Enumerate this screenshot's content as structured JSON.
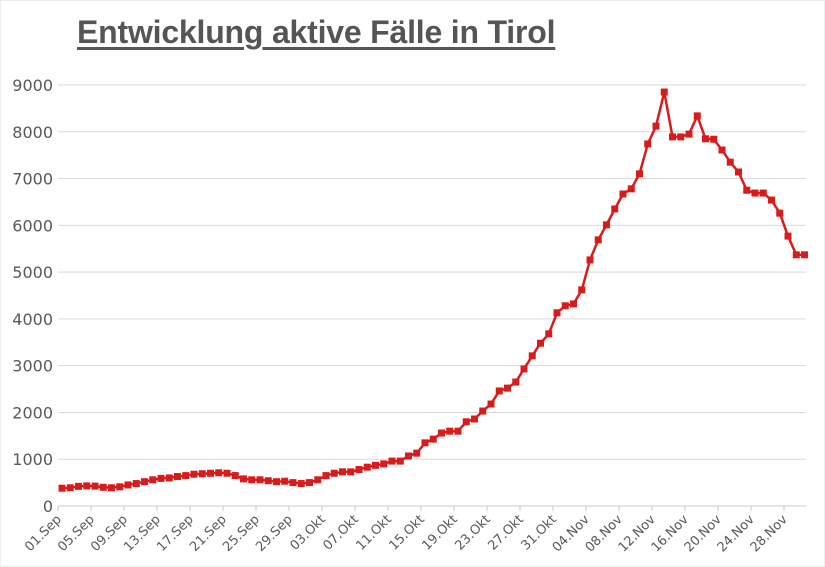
{
  "chart_data": {
    "type": "line",
    "title": "Entwicklung aktive Fälle in Tirol",
    "xlabel": "",
    "ylabel": "",
    "ylim": [
      0,
      9000
    ],
    "yticks": [
      0,
      1000,
      2000,
      3000,
      4000,
      5000,
      6000,
      7000,
      8000,
      9000
    ],
    "grid": true,
    "legend": null,
    "line_color": "#d81c1c",
    "marker": "square",
    "x_tick_labels": [
      "01.Sep",
      "05.Sep",
      "09.Sep",
      "13.Sep",
      "17.Sep",
      "21.Sep",
      "25.Sep",
      "29.Sep",
      "03.Okt",
      "07.Okt",
      "11.Okt",
      "15.Okt",
      "19.Okt",
      "23.Okt",
      "27.Okt",
      "31.Okt",
      "04.Nov",
      "08.Nov",
      "12.Nov",
      "16.Nov",
      "20.Nov",
      "24.Nov",
      "28.Nov"
    ],
    "x": [
      "01.Sep",
      "02.Sep",
      "03.Sep",
      "04.Sep",
      "05.Sep",
      "06.Sep",
      "07.Sep",
      "08.Sep",
      "09.Sep",
      "10.Sep",
      "11.Sep",
      "12.Sep",
      "13.Sep",
      "14.Sep",
      "15.Sep",
      "16.Sep",
      "17.Sep",
      "18.Sep",
      "19.Sep",
      "20.Sep",
      "21.Sep",
      "22.Sep",
      "23.Sep",
      "24.Sep",
      "25.Sep",
      "26.Sep",
      "27.Sep",
      "28.Sep",
      "29.Sep",
      "30.Sep",
      "01.Okt",
      "02.Okt",
      "03.Okt",
      "04.Okt",
      "05.Okt",
      "06.Okt",
      "07.Okt",
      "08.Okt",
      "09.Okt",
      "10.Okt",
      "11.Okt",
      "12.Okt",
      "13.Okt",
      "14.Okt",
      "15.Okt",
      "16.Okt",
      "17.Okt",
      "18.Okt",
      "19.Okt",
      "20.Okt",
      "21.Okt",
      "22.Okt",
      "23.Okt",
      "24.Okt",
      "25.Okt",
      "26.Okt",
      "27.Okt",
      "28.Okt",
      "29.Okt",
      "30.Okt",
      "31.Okt",
      "01.Nov",
      "02.Nov",
      "03.Nov",
      "04.Nov",
      "05.Nov",
      "06.Nov",
      "07.Nov",
      "08.Nov",
      "09.Nov",
      "10.Nov",
      "11.Nov",
      "12.Nov",
      "13.Nov",
      "14.Nov",
      "15.Nov",
      "16.Nov",
      "17.Nov",
      "18.Nov",
      "19.Nov",
      "20.Nov",
      "21.Nov",
      "22.Nov",
      "23.Nov",
      "24.Nov",
      "25.Nov",
      "26.Nov",
      "27.Nov",
      "28.Nov",
      "29.Nov",
      "30.Nov"
    ],
    "series": [
      {
        "name": "Aktive Fälle",
        "values": [
          380,
          390,
          420,
          430,
          425,
          400,
          390,
          410,
          450,
          480,
          520,
          560,
          590,
          600,
          630,
          650,
          680,
          690,
          700,
          710,
          700,
          650,
          580,
          560,
          560,
          540,
          520,
          530,
          500,
          480,
          500,
          560,
          650,
          700,
          730,
          730,
          780,
          830,
          870,
          900,
          960,
          960,
          1070,
          1130,
          1350,
          1430,
          1560,
          1600,
          1600,
          1800,
          1860,
          2030,
          2180,
          2460,
          2520,
          2650,
          2930,
          3210,
          3480,
          3680,
          4130,
          4280,
          4320,
          4620,
          5260,
          5690,
          6010,
          6350,
          6670,
          6780,
          7100,
          7740,
          8120,
          8850,
          7890,
          7890,
          7950,
          8340,
          7850,
          7840,
          7610,
          7350,
          7140,
          6750,
          6690,
          6690,
          6540,
          6260,
          5770,
          5370,
          5370
        ]
      }
    ]
  },
  "header": {
    "title": "Entwicklung aktive Fälle in Tirol"
  }
}
